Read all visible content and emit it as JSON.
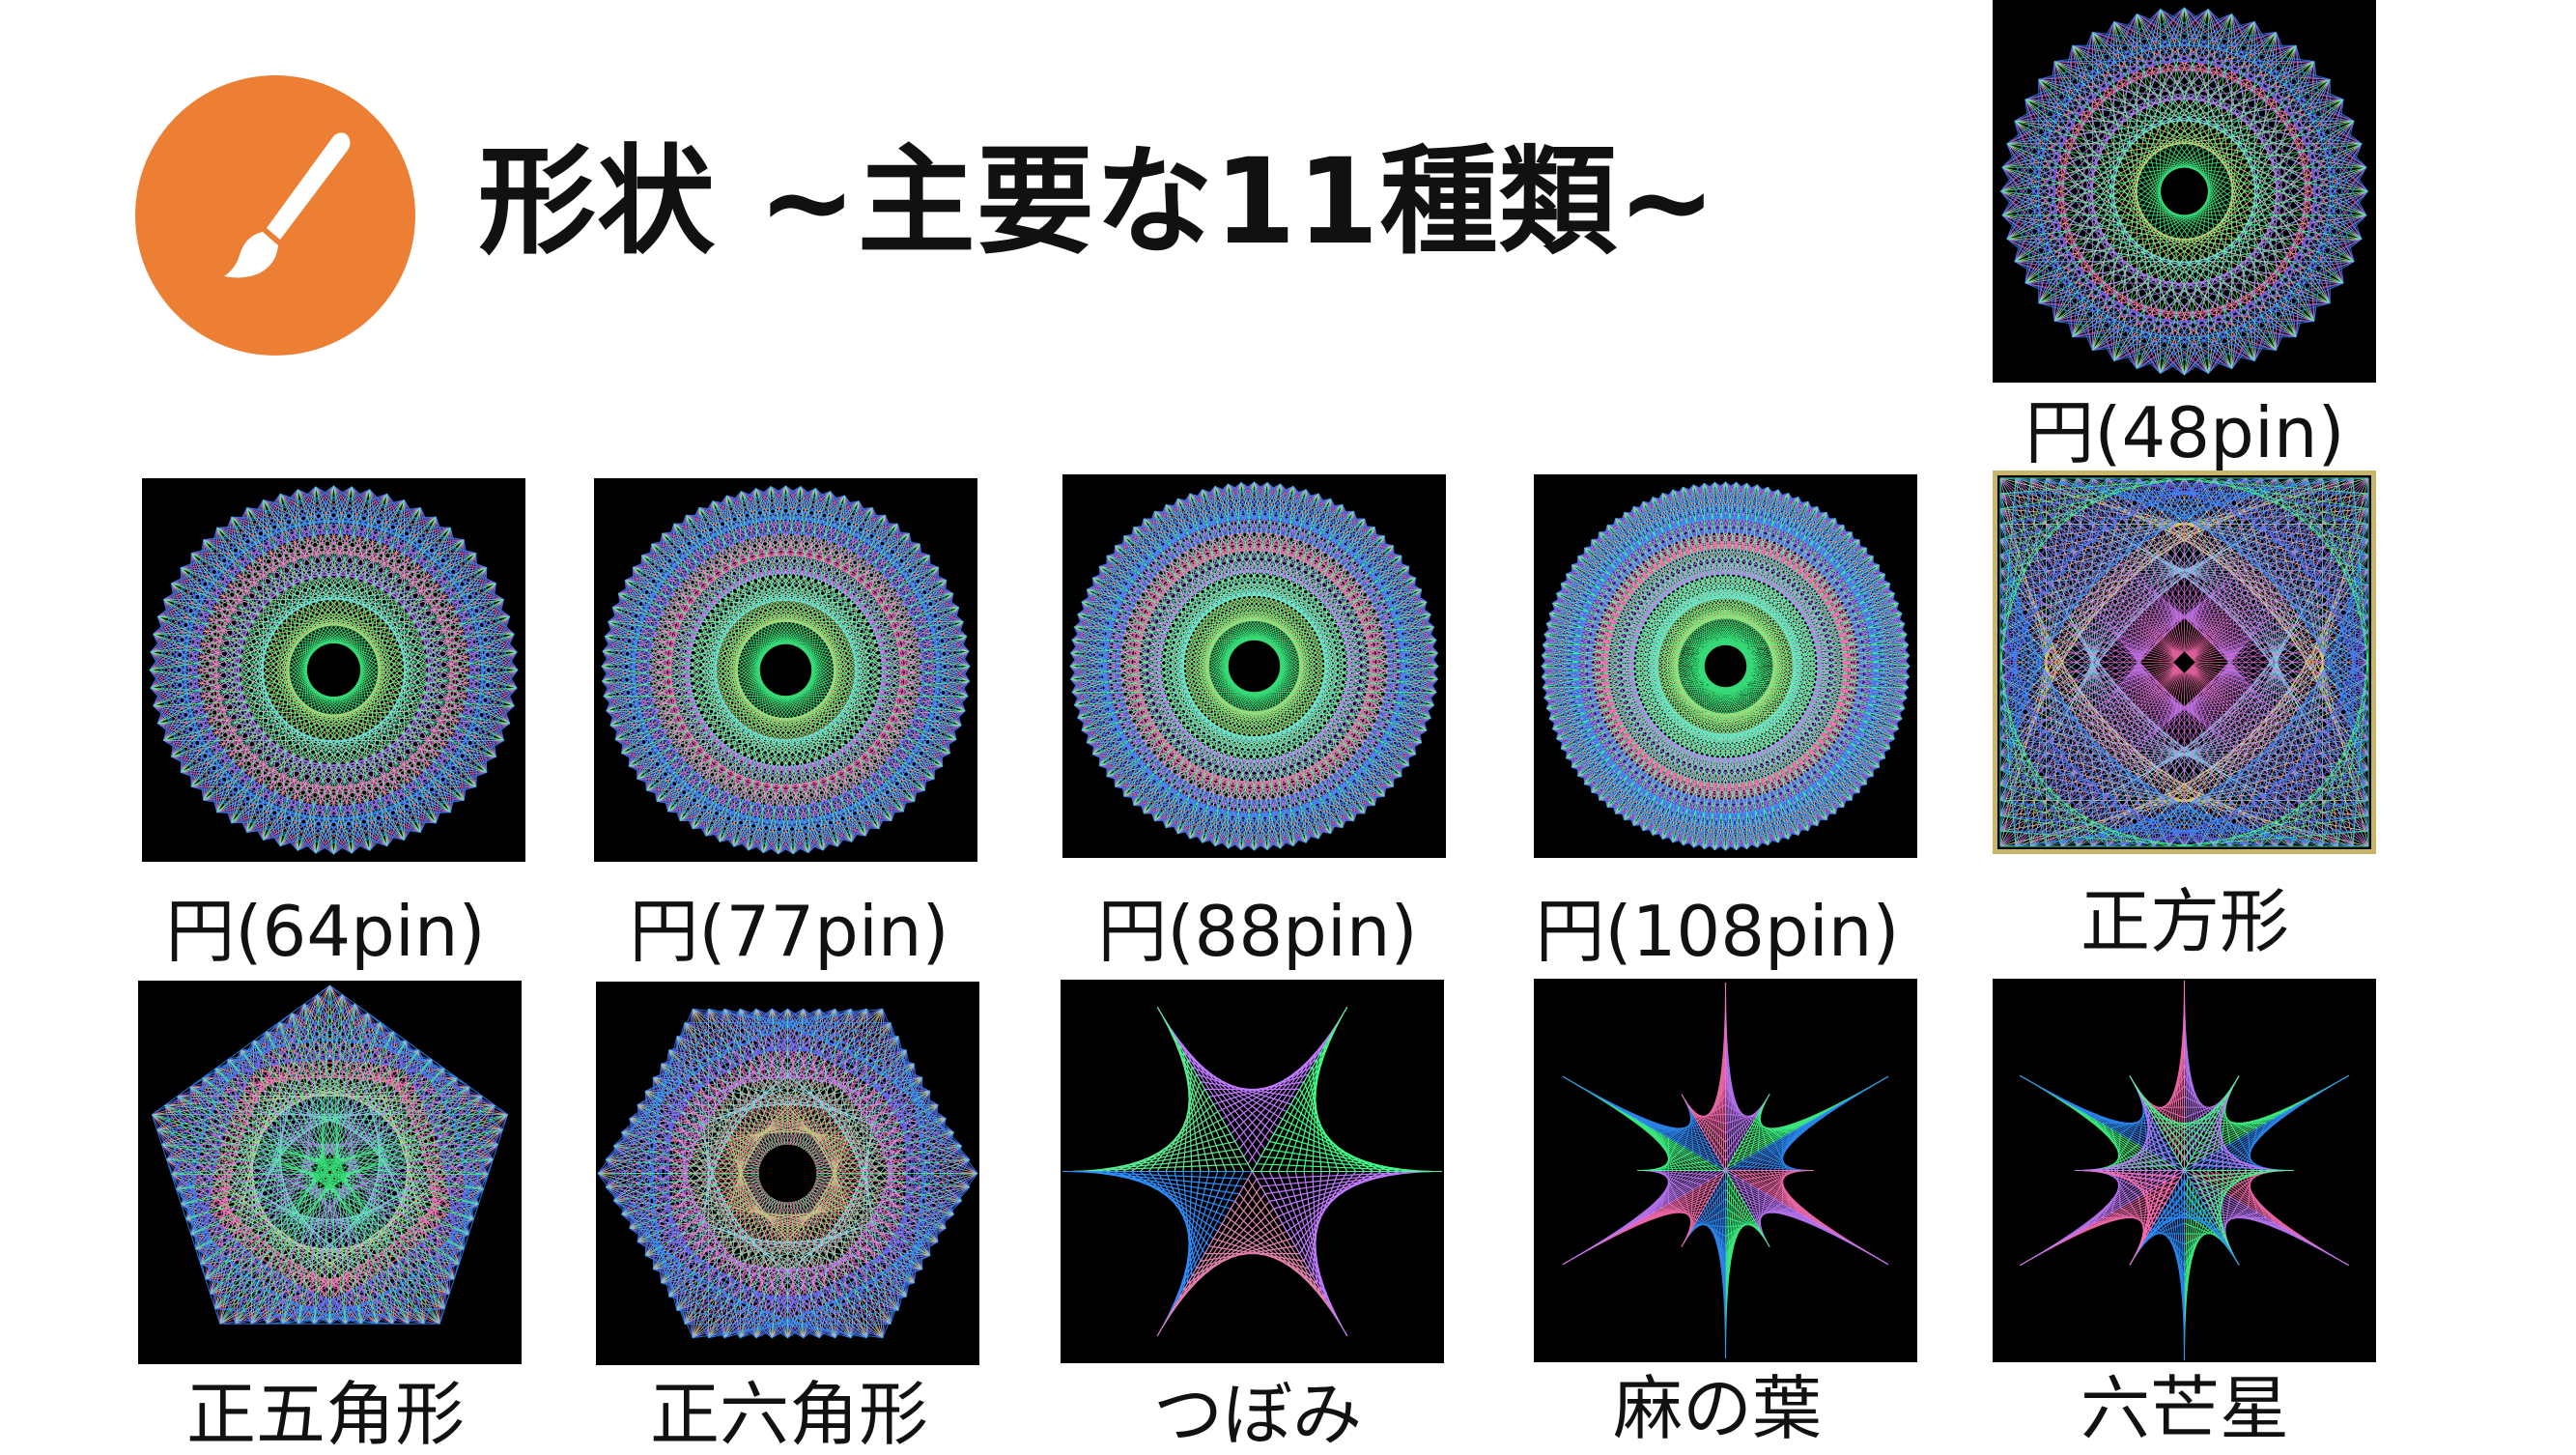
{
  "title": "形状 ~主要な11種類~",
  "accent_color": "#ec7f33",
  "logo_icon": "paintbrush-icon",
  "shapes": [
    {
      "label": "円(48pin)",
      "kind": "circle",
      "pins": 48
    },
    {
      "label": "円(64pin)",
      "kind": "circle",
      "pins": 64
    },
    {
      "label": "円(77pin)",
      "kind": "circle",
      "pins": 77
    },
    {
      "label": "円(88pin)",
      "kind": "circle",
      "pins": 88
    },
    {
      "label": "円(108pin)",
      "kind": "circle",
      "pins": 108
    },
    {
      "label": "正方形",
      "kind": "square"
    },
    {
      "label": "正五角形",
      "kind": "pentagon"
    },
    {
      "label": "正六角形",
      "kind": "hexagon"
    },
    {
      "label": "つぼみ",
      "kind": "bud"
    },
    {
      "label": "麻の葉",
      "kind": "hemp"
    },
    {
      "label": "六芒星",
      "kind": "hexagram"
    }
  ]
}
